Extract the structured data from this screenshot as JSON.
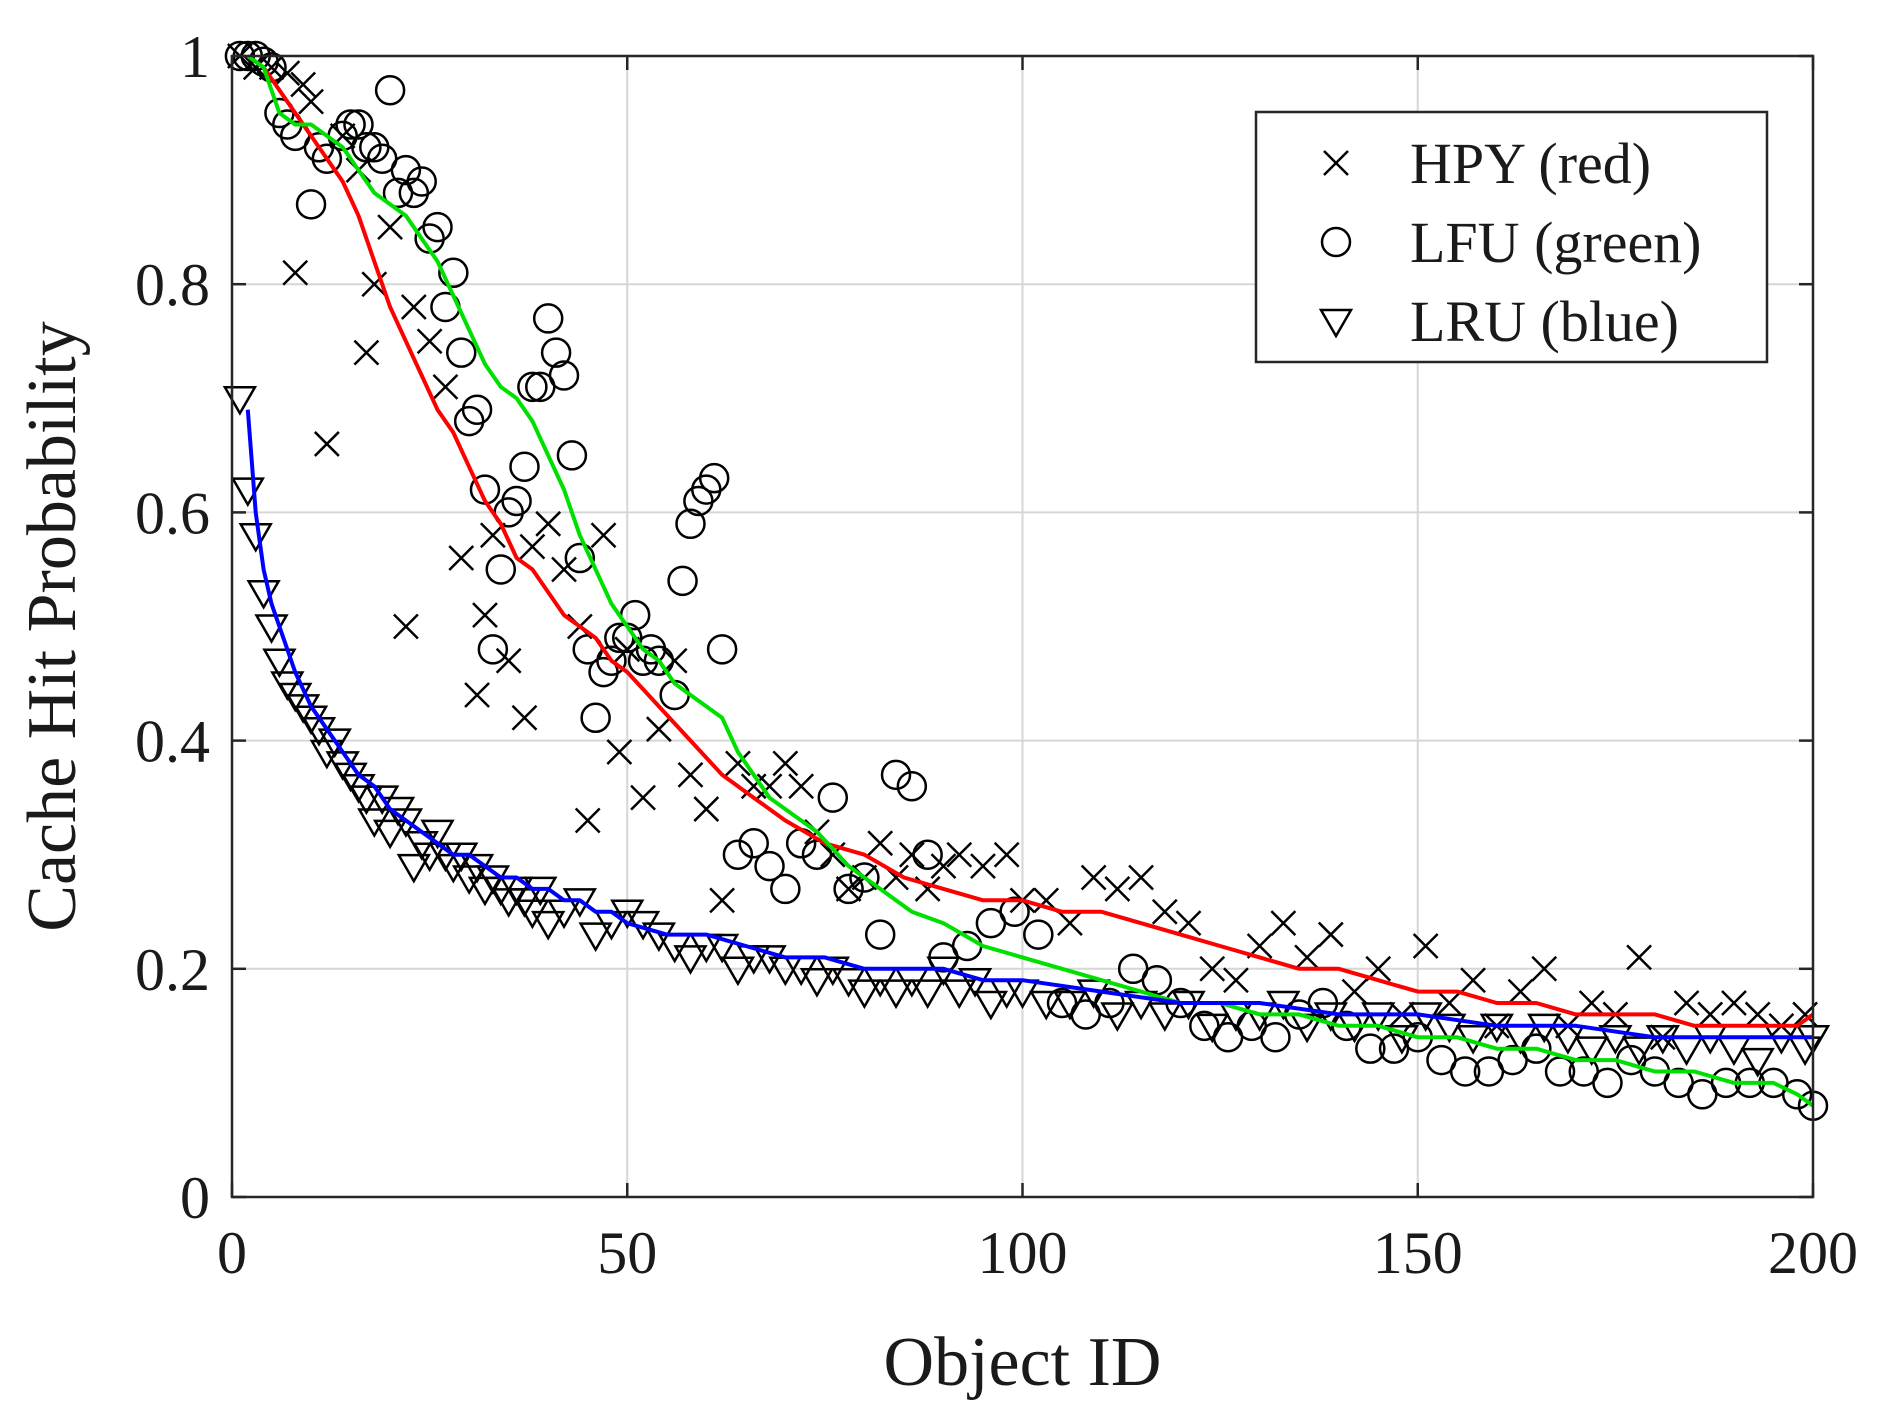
{
  "chart_data": {
    "type": "scatter",
    "title": "",
    "xlabel": "Object ID",
    "ylabel": "Cache Hit Probability",
    "xlim": [
      0,
      200
    ],
    "ylim": [
      0,
      1
    ],
    "xticks": [
      0,
      50,
      100,
      150,
      200
    ],
    "yticks": [
      0,
      0.2,
      0.4,
      0.6,
      0.8,
      1
    ],
    "xtick_labels": [
      "0",
      "50",
      "100",
      "150",
      "200"
    ],
    "ytick_labels": [
      "0",
      "0.2",
      "0.4",
      "0.6",
      "0.8",
      "1"
    ],
    "grid": true,
    "legend_position": "top-right",
    "colors": {
      "red": "#ff0000",
      "green": "#00e000",
      "blue": "#0000ff",
      "marker": "#000000"
    },
    "series": [
      {
        "name": "HPY (red)",
        "marker": "x",
        "line_color": "#ff0000",
        "points_x": [
          1,
          3,
          5,
          7,
          8,
          9,
          10,
          12,
          14,
          16,
          17,
          18,
          20,
          22,
          23,
          25,
          27,
          29,
          31,
          32,
          33,
          35,
          37,
          38,
          40,
          42,
          44,
          45,
          47,
          49,
          50,
          52,
          54,
          56,
          58,
          60,
          62,
          64,
          66,
          68,
          70,
          72,
          74,
          76,
          78,
          80,
          82,
          84,
          86,
          88,
          90,
          92,
          95,
          98,
          100,
          103,
          106,
          109,
          112,
          115,
          118,
          121,
          124,
          127,
          130,
          133,
          136,
          139,
          142,
          145,
          148,
          151,
          154,
          157,
          160,
          163,
          166,
          169,
          172,
          175,
          178,
          181,
          184,
          187,
          190,
          193,
          196,
          199
        ],
        "points_y": [
          1.0,
          0.99,
          0.99,
          0.985,
          0.81,
          0.975,
          0.96,
          0.66,
          0.93,
          0.9,
          0.74,
          0.8,
          0.85,
          0.5,
          0.78,
          0.75,
          0.71,
          0.56,
          0.44,
          0.51,
          0.58,
          0.47,
          0.42,
          0.57,
          0.59,
          0.55,
          0.5,
          0.33,
          0.58,
          0.39,
          0.48,
          0.35,
          0.41,
          0.47,
          0.37,
          0.34,
          0.26,
          0.38,
          0.36,
          0.36,
          0.38,
          0.36,
          0.32,
          0.3,
          0.27,
          0.28,
          0.31,
          0.28,
          0.3,
          0.27,
          0.29,
          0.3,
          0.29,
          0.3,
          0.26,
          0.26,
          0.24,
          0.28,
          0.27,
          0.28,
          0.25,
          0.24,
          0.2,
          0.19,
          0.22,
          0.24,
          0.21,
          0.23,
          0.18,
          0.2,
          0.16,
          0.22,
          0.17,
          0.19,
          0.15,
          0.18,
          0.2,
          0.15,
          0.17,
          0.16,
          0.21,
          0.14,
          0.17,
          0.16,
          0.17,
          0.16,
          0.15,
          0.16
        ],
        "line_x": [
          2,
          4,
          6,
          8,
          10,
          12,
          14,
          16,
          18,
          20,
          22,
          24,
          26,
          28,
          30,
          32,
          34,
          36,
          38,
          40,
          42,
          44,
          46,
          48,
          50,
          54,
          58,
          62,
          66,
          70,
          75,
          80,
          85,
          90,
          95,
          100,
          105,
          110,
          115,
          120,
          125,
          130,
          135,
          140,
          145,
          150,
          155,
          160,
          165,
          170,
          175,
          180,
          185,
          190,
          195,
          198,
          200
        ],
        "line_y": [
          1.0,
          0.99,
          0.97,
          0.95,
          0.93,
          0.91,
          0.89,
          0.86,
          0.82,
          0.78,
          0.75,
          0.72,
          0.69,
          0.67,
          0.64,
          0.61,
          0.59,
          0.56,
          0.55,
          0.53,
          0.51,
          0.5,
          0.49,
          0.47,
          0.46,
          0.43,
          0.4,
          0.37,
          0.35,
          0.33,
          0.31,
          0.3,
          0.28,
          0.27,
          0.26,
          0.26,
          0.25,
          0.25,
          0.24,
          0.23,
          0.22,
          0.21,
          0.2,
          0.2,
          0.19,
          0.18,
          0.18,
          0.17,
          0.17,
          0.16,
          0.16,
          0.16,
          0.15,
          0.15,
          0.15,
          0.15,
          0.16
        ]
      },
      {
        "name": "LFU (green)",
        "marker": "o",
        "line_color": "#00e000",
        "points_x": [
          1,
          2,
          3,
          4,
          5,
          6,
          7,
          8,
          10,
          11,
          12,
          14,
          15,
          16,
          17,
          18,
          19,
          20,
          21,
          22,
          23,
          24,
          25,
          26,
          27,
          28,
          29,
          30,
          31,
          32,
          33,
          34,
          35,
          36,
          37,
          38,
          39,
          40,
          41,
          42,
          43,
          44,
          45,
          46,
          47,
          48,
          49,
          50,
          51,
          52,
          53,
          54,
          56,
          57,
          58,
          59,
          60,
          61,
          62,
          64,
          66,
          68,
          70,
          72,
          74,
          76,
          78,
          80,
          82,
          84,
          86,
          88,
          90,
          93,
          96,
          99,
          102,
          105,
          108,
          111,
          114,
          117,
          120,
          123,
          126,
          129,
          132,
          135,
          138,
          141,
          144,
          147,
          150,
          153,
          156,
          159,
          162,
          165,
          168,
          171,
          174,
          177,
          180,
          183,
          186,
          189,
          192,
          195,
          198,
          200
        ],
        "points_y": [
          1.0,
          1.0,
          1.0,
          0.995,
          0.99,
          0.95,
          0.94,
          0.93,
          0.87,
          0.92,
          0.91,
          0.93,
          0.94,
          0.94,
          0.92,
          0.92,
          0.91,
          0.97,
          0.88,
          0.9,
          0.88,
          0.89,
          0.84,
          0.85,
          0.78,
          0.81,
          0.74,
          0.68,
          0.69,
          0.62,
          0.48,
          0.55,
          0.6,
          0.61,
          0.64,
          0.71,
          0.71,
          0.77,
          0.74,
          0.72,
          0.65,
          0.56,
          0.48,
          0.42,
          0.46,
          0.47,
          0.49,
          0.49,
          0.51,
          0.47,
          0.48,
          0.47,
          0.44,
          0.54,
          0.59,
          0.61,
          0.62,
          0.63,
          0.48,
          0.3,
          0.31,
          0.29,
          0.27,
          0.31,
          0.3,
          0.35,
          0.27,
          0.28,
          0.23,
          0.37,
          0.36,
          0.3,
          0.21,
          0.22,
          0.24,
          0.25,
          0.23,
          0.17,
          0.16,
          0.17,
          0.2,
          0.19,
          0.17,
          0.15,
          0.14,
          0.15,
          0.14,
          0.16,
          0.17,
          0.15,
          0.13,
          0.13,
          0.14,
          0.12,
          0.11,
          0.11,
          0.12,
          0.13,
          0.11,
          0.11,
          0.1,
          0.12,
          0.11,
          0.1,
          0.09,
          0.1,
          0.1,
          0.1,
          0.09,
          0.08
        ],
        "line_x": [
          2,
          4,
          6,
          8,
          10,
          12,
          14,
          16,
          18,
          20,
          22,
          24,
          26,
          28,
          30,
          32,
          34,
          36,
          38,
          40,
          42,
          44,
          46,
          48,
          50,
          52,
          54,
          56,
          58,
          60,
          62,
          64,
          66,
          68,
          70,
          74,
          78,
          82,
          86,
          90,
          95,
          100,
          105,
          110,
          115,
          120,
          125,
          130,
          135,
          140,
          145,
          150,
          155,
          160,
          165,
          170,
          175,
          180,
          185,
          190,
          195,
          198,
          200
        ],
        "line_y": [
          1.0,
          0.99,
          0.95,
          0.94,
          0.94,
          0.93,
          0.92,
          0.9,
          0.88,
          0.87,
          0.86,
          0.84,
          0.82,
          0.79,
          0.76,
          0.73,
          0.71,
          0.7,
          0.68,
          0.65,
          0.62,
          0.58,
          0.55,
          0.52,
          0.5,
          0.48,
          0.47,
          0.45,
          0.44,
          0.43,
          0.42,
          0.39,
          0.37,
          0.35,
          0.34,
          0.32,
          0.29,
          0.27,
          0.25,
          0.24,
          0.22,
          0.21,
          0.2,
          0.19,
          0.18,
          0.17,
          0.17,
          0.16,
          0.16,
          0.15,
          0.15,
          0.14,
          0.14,
          0.13,
          0.13,
          0.12,
          0.12,
          0.11,
          0.11,
          0.1,
          0.1,
          0.09,
          0.08
        ]
      },
      {
        "name": "LRU (blue)",
        "marker": "v",
        "line_color": "#0000ff",
        "points_x": [
          1,
          2,
          3,
          4,
          5,
          6,
          7,
          8,
          9,
          10,
          11,
          12,
          13,
          14,
          15,
          16,
          17,
          18,
          19,
          20,
          21,
          22,
          23,
          24,
          25,
          26,
          27,
          28,
          29,
          30,
          31,
          32,
          33,
          34,
          35,
          36,
          37,
          38,
          39,
          40,
          42,
          44,
          46,
          48,
          50,
          52,
          54,
          56,
          58,
          60,
          62,
          64,
          66,
          68,
          70,
          72,
          74,
          76,
          78,
          80,
          82,
          84,
          86,
          88,
          90,
          92,
          94,
          96,
          98,
          100,
          103,
          106,
          109,
          112,
          115,
          118,
          121,
          124,
          127,
          130,
          133,
          136,
          139,
          142,
          145,
          148,
          151,
          154,
          157,
          160,
          163,
          166,
          169,
          172,
          175,
          178,
          181,
          184,
          187,
          190,
          193,
          196,
          199,
          200
        ],
        "points_y": [
          0.7,
          0.62,
          0.58,
          0.53,
          0.5,
          0.47,
          0.45,
          0.44,
          0.43,
          0.42,
          0.41,
          0.39,
          0.4,
          0.38,
          0.37,
          0.36,
          0.35,
          0.33,
          0.35,
          0.32,
          0.34,
          0.33,
          0.29,
          0.31,
          0.3,
          0.32,
          0.3,
          0.29,
          0.3,
          0.28,
          0.29,
          0.27,
          0.28,
          0.27,
          0.26,
          0.27,
          0.26,
          0.25,
          0.27,
          0.24,
          0.25,
          0.26,
          0.23,
          0.24,
          0.25,
          0.24,
          0.23,
          0.22,
          0.21,
          0.22,
          0.22,
          0.2,
          0.21,
          0.21,
          0.2,
          0.2,
          0.19,
          0.2,
          0.19,
          0.18,
          0.19,
          0.18,
          0.19,
          0.18,
          0.2,
          0.18,
          0.19,
          0.17,
          0.18,
          0.18,
          0.17,
          0.17,
          0.18,
          0.16,
          0.17,
          0.16,
          0.17,
          0.15,
          0.16,
          0.16,
          0.17,
          0.15,
          0.16,
          0.15,
          0.16,
          0.14,
          0.16,
          0.15,
          0.14,
          0.15,
          0.14,
          0.15,
          0.14,
          0.13,
          0.14,
          0.13,
          0.14,
          0.13,
          0.14,
          0.13,
          0.12,
          0.14,
          0.13,
          0.14
        ],
        "line_x": [
          2,
          3,
          4,
          5,
          6,
          8,
          10,
          12,
          14,
          16,
          18,
          20,
          22,
          24,
          26,
          28,
          30,
          32,
          34,
          36,
          38,
          40,
          42,
          44,
          46,
          48,
          50,
          55,
          60,
          65,
          70,
          75,
          80,
          85,
          90,
          95,
          100,
          110,
          120,
          130,
          140,
          150,
          160,
          170,
          180,
          190,
          200
        ],
        "line_y": [
          0.69,
          0.6,
          0.55,
          0.52,
          0.5,
          0.46,
          0.43,
          0.41,
          0.39,
          0.37,
          0.36,
          0.34,
          0.33,
          0.32,
          0.31,
          0.3,
          0.3,
          0.29,
          0.28,
          0.28,
          0.27,
          0.27,
          0.26,
          0.26,
          0.25,
          0.25,
          0.24,
          0.23,
          0.23,
          0.22,
          0.21,
          0.21,
          0.2,
          0.2,
          0.2,
          0.19,
          0.19,
          0.18,
          0.17,
          0.17,
          0.16,
          0.16,
          0.15,
          0.15,
          0.14,
          0.14,
          0.14
        ]
      }
    ]
  }
}
